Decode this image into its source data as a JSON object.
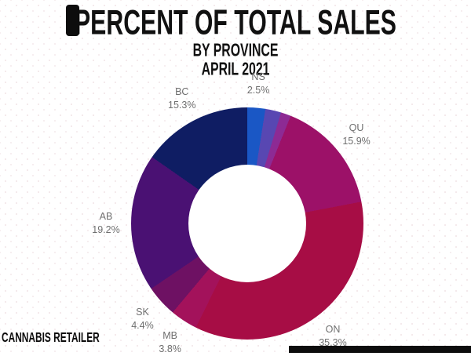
{
  "header": {
    "title": "PERCENT OF TOTAL SALES",
    "subtitle": "BY PROVINCE",
    "date_line": "APRIL 2021"
  },
  "footer": {
    "brand": "CANNABIS RETAILER"
  },
  "chart_data": {
    "type": "pie",
    "variant": "donut",
    "title": "PERCENT OF TOTAL SALES BY PROVINCE APRIL 2021",
    "unit": "%",
    "start_angle_deg": 0,
    "direction": "clockwise",
    "legend_position": "none",
    "labels_outside": true,
    "label_color": "#6f6f6f",
    "segments": [
      {
        "label": "NS",
        "value": 2.5,
        "color": "#1a57c5",
        "labeled": true
      },
      {
        "label": "",
        "value": 2.2,
        "color": "#5847b2",
        "labeled": false
      },
      {
        "label": "",
        "value": 1.4,
        "color": "#8d2a94",
        "labeled": false
      },
      {
        "label": "QU",
        "value": 15.9,
        "color": "#9c1168",
        "labeled": true
      },
      {
        "label": "ON",
        "value": 35.3,
        "color": "#a70d45",
        "labeled": true
      },
      {
        "label": "MB",
        "value": 3.8,
        "color": "#a3125b",
        "labeled": true
      },
      {
        "label": "SK",
        "value": 4.4,
        "color": "#6e1163",
        "labeled": true
      },
      {
        "label": "AB",
        "value": 19.2,
        "color": "#4a1173",
        "labeled": true
      },
      {
        "label": "BC",
        "value": 15.3,
        "color": "#0f1d63",
        "labeled": true
      }
    ]
  }
}
